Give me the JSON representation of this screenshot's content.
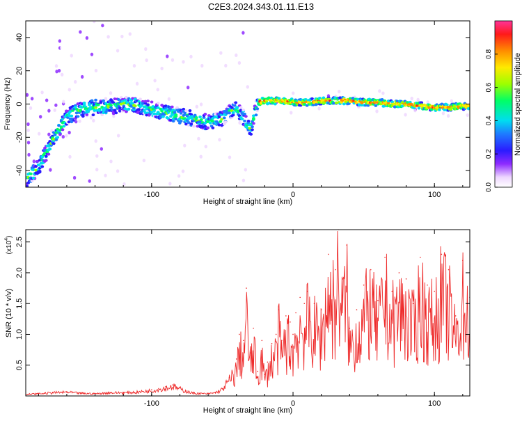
{
  "figure_title": "C2E3.2024.343.01.11.E13",
  "chart_data": [
    {
      "type": "heatmap",
      "xlabel": "Height of straight line (km)",
      "ylabel": "Frequency (Hz)",
      "xlim": [
        -189,
        125
      ],
      "ylim": [
        -50,
        50
      ],
      "x_ticks": [
        -100,
        0,
        100
      ],
      "x_tick_labels": [
        "-100",
        "0",
        "100"
      ],
      "y_ticks": [
        -40,
        -20,
        0,
        20,
        40
      ],
      "y_tick_labels": [
        "-40",
        "-20",
        "0",
        "20",
        "40"
      ],
      "colorbar": {
        "label": "Normalized spectral amplitude",
        "range": [
          0,
          1
        ],
        "ticks": [
          0.0,
          0.2,
          0.4,
          0.6,
          0.8
        ],
        "tick_labels": [
          "0.0",
          "0.2",
          "0.4",
          "0.6",
          "0.8"
        ],
        "colormap": "rainbow"
      },
      "ridge_frequency_hz": {
        "x": [
          -189,
          -180,
          -170,
          -160,
          -150,
          -140,
          -130,
          -120,
          -110,
          -100,
          -90,
          -80,
          -70,
          -60,
          -50,
          -45,
          -40,
          -35,
          -30,
          -25,
          -20,
          -10,
          0,
          10,
          20,
          30,
          40,
          50,
          60,
          70,
          80,
          90,
          100,
          110,
          125
        ],
        "y": [
          -46,
          -38,
          -22,
          -8,
          -3,
          -2,
          -2,
          0,
          -1,
          -3,
          -5,
          -7,
          -9,
          -11,
          -9,
          -5,
          -3,
          -8,
          -15,
          1,
          2,
          2,
          1,
          1,
          2,
          2,
          2,
          1,
          1,
          0,
          0,
          -1,
          -2,
          -2,
          -1
        ]
      },
      "grid": false
    },
    {
      "type": "line",
      "xlabel": "Height of straight line (km)",
      "ylabel": "SNR (10 * v/v)",
      "y_scale_label": "(x10",
      "y_scale_exponent": "4",
      "xlim": [
        -189,
        125
      ],
      "ylim": [
        0,
        2.7
      ],
      "x_ticks": [
        -100,
        0,
        100
      ],
      "x_tick_labels": [
        "-100",
        "0",
        "100"
      ],
      "y_ticks": [
        0.5,
        1.0,
        1.5,
        2.0,
        2.5
      ],
      "y_tick_labels": [
        "0.5",
        "1.0",
        "1.5",
        "2.0",
        "2.5"
      ],
      "series": [
        {
          "color": "#ee2a2a",
          "x": [
            -189,
            -180,
            -170,
            -160,
            -150,
            -140,
            -130,
            -120,
            -110,
            -100,
            -95,
            -90,
            -85,
            -80,
            -75,
            -70,
            -60,
            -55,
            -50,
            -45,
            -40,
            -38,
            -35,
            -33,
            -30,
            -28,
            -25,
            -22,
            -20,
            -18,
            -15,
            -12,
            -10,
            -8,
            -5,
            -2,
            0,
            2,
            5,
            8,
            10,
            15,
            20,
            25,
            30,
            32,
            35,
            38,
            40,
            45,
            50,
            55,
            60,
            65,
            70,
            75,
            80,
            85,
            90,
            95,
            100,
            105,
            110,
            115,
            120,
            125
          ],
          "y": [
            0.03,
            0.04,
            0.06,
            0.07,
            0.05,
            0.04,
            0.06,
            0.06,
            0.07,
            0.1,
            0.12,
            0.15,
            0.18,
            0.13,
            0.08,
            0.05,
            0.04,
            0.06,
            0.12,
            0.3,
            0.6,
            1.0,
            0.9,
            1.75,
            0.7,
            1.1,
            0.4,
            0.9,
            0.35,
            0.55,
            0.85,
            1.0,
            1.4,
            0.9,
            1.3,
            1.2,
            1.0,
            1.35,
            1.6,
            1.5,
            1.7,
            1.5,
            1.4,
            2.3,
            2.05,
            2.7,
            1.9,
            2.45,
            1.1,
            1.4,
            1.8,
            2.05,
            1.55,
            2.25,
            1.7,
            2.0,
            1.9,
            1.5,
            2.25,
            1.8,
            1.7,
            2.3,
            2.05,
            1.3,
            2.2,
            1.6
          ]
        }
      ],
      "grid": false
    }
  ]
}
